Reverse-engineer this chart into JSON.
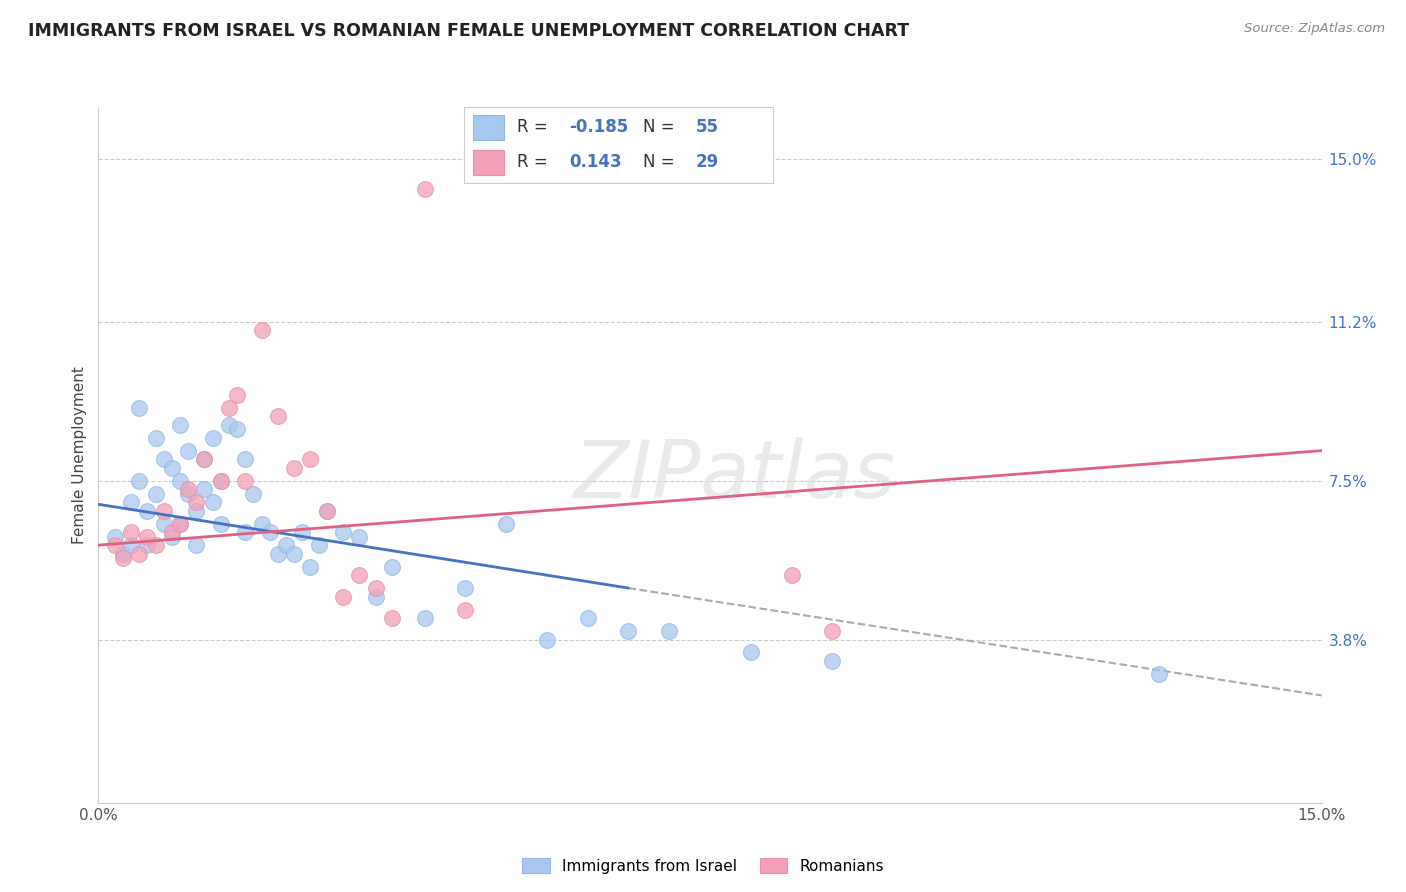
{
  "title": "IMMIGRANTS FROM ISRAEL VS ROMANIAN FEMALE UNEMPLOYMENT CORRELATION CHART",
  "source": "Source: ZipAtlas.com",
  "ylabel": "Female Unemployment",
  "right_yticks": [
    "15.0%",
    "11.2%",
    "7.5%",
    "3.8%"
  ],
  "right_ytick_vals": [
    0.15,
    0.112,
    0.075,
    0.038
  ],
  "xmin": 0.0,
  "xmax": 0.15,
  "ymin": 0.0,
  "ymax": 0.162,
  "color_blue": "#A8C8F0",
  "color_pink": "#F4A0B8",
  "color_blue_edge": "#90B8E0",
  "color_pink_edge": "#E890A8",
  "line_blue": "#4472C4",
  "line_pink": "#E06080",
  "line_dashed_color": "#AAAAAA",
  "israel_x": [
    0.002,
    0.003,
    0.004,
    0.004,
    0.005,
    0.005,
    0.006,
    0.006,
    0.007,
    0.007,
    0.008,
    0.008,
    0.009,
    0.009,
    0.01,
    0.01,
    0.01,
    0.011,
    0.011,
    0.012,
    0.012,
    0.013,
    0.013,
    0.014,
    0.014,
    0.015,
    0.015,
    0.016,
    0.017,
    0.018,
    0.018,
    0.019,
    0.02,
    0.021,
    0.022,
    0.023,
    0.024,
    0.025,
    0.026,
    0.027,
    0.028,
    0.03,
    0.032,
    0.034,
    0.036,
    0.04,
    0.045,
    0.05,
    0.055,
    0.06,
    0.065,
    0.07,
    0.08,
    0.09,
    0.13
  ],
  "israel_y": [
    0.062,
    0.058,
    0.07,
    0.06,
    0.092,
    0.075,
    0.068,
    0.06,
    0.085,
    0.072,
    0.08,
    0.065,
    0.078,
    0.062,
    0.088,
    0.075,
    0.065,
    0.082,
    0.072,
    0.068,
    0.06,
    0.08,
    0.073,
    0.085,
    0.07,
    0.075,
    0.065,
    0.088,
    0.087,
    0.08,
    0.063,
    0.072,
    0.065,
    0.063,
    0.058,
    0.06,
    0.058,
    0.063,
    0.055,
    0.06,
    0.068,
    0.063,
    0.062,
    0.048,
    0.055,
    0.043,
    0.05,
    0.065,
    0.038,
    0.043,
    0.04,
    0.04,
    0.035,
    0.033,
    0.03
  ],
  "romanian_x": [
    0.002,
    0.003,
    0.004,
    0.005,
    0.006,
    0.007,
    0.008,
    0.009,
    0.01,
    0.011,
    0.012,
    0.013,
    0.015,
    0.016,
    0.017,
    0.018,
    0.02,
    0.022,
    0.024,
    0.026,
    0.028,
    0.03,
    0.032,
    0.034,
    0.036,
    0.04,
    0.045,
    0.085,
    0.09
  ],
  "romanian_y": [
    0.06,
    0.057,
    0.063,
    0.058,
    0.062,
    0.06,
    0.068,
    0.063,
    0.065,
    0.073,
    0.07,
    0.08,
    0.075,
    0.092,
    0.095,
    0.075,
    0.11,
    0.09,
    0.078,
    0.08,
    0.068,
    0.048,
    0.053,
    0.05,
    0.043,
    0.143,
    0.045,
    0.053,
    0.04
  ],
  "israel_line_x": [
    0.0,
    0.065
  ],
  "israel_line_y": [
    0.0695,
    0.05
  ],
  "romanian_line_x": [
    0.0,
    0.15
  ],
  "romanian_line_y": [
    0.06,
    0.082
  ],
  "dashed_line_x": [
    0.065,
    0.15
  ],
  "dashed_line_y": [
    0.05,
    0.025
  ],
  "watermark_text": "ZIPatlas",
  "legend_label1": "Immigrants from Israel",
  "legend_label2": "Romanians",
  "legend_r1_text": "R =",
  "legend_r1_val": "-0.185",
  "legend_n1_text": "N =",
  "legend_n1_val": "55",
  "legend_r2_text": "R =",
  "legend_r2_val": "0.143",
  "legend_n2_text": "N =",
  "legend_n2_val": "29"
}
